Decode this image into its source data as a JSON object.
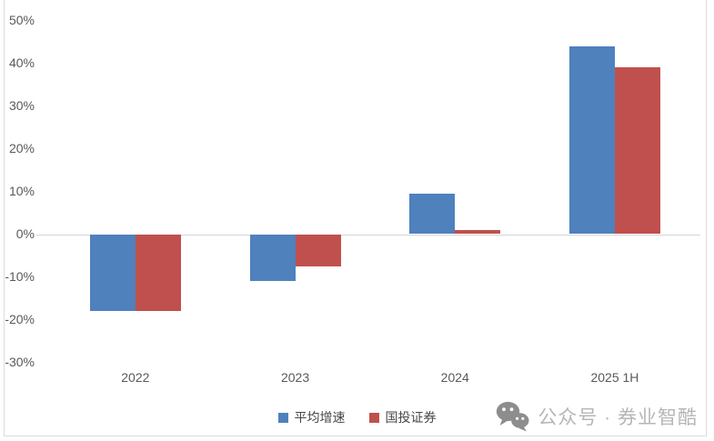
{
  "chart_data": {
    "type": "bar",
    "title": "",
    "categories": [
      "2022",
      "2023",
      "2024",
      "2025 1H"
    ],
    "series": [
      {
        "name": "平均增速",
        "color": "#4F81BD",
        "values": [
          -18,
          -11,
          9.5,
          44
        ]
      },
      {
        "name": "国投证券",
        "color": "#C0504D",
        "values": [
          -18,
          -7.5,
          1,
          39
        ]
      }
    ],
    "ylim": [
      -30,
      50
    ],
    "ytick_labels": [
      "50%",
      "40%",
      "30%",
      "20%",
      "10%",
      "0%",
      "-10%",
      "-20%",
      "-30%"
    ],
    "grid": false,
    "legend_position": "bottom-center"
  },
  "watermark": {
    "icon": "wechat-icon",
    "text": "公众号 · 券业智酷"
  },
  "colors": {
    "axis_line": "#D4D4D4",
    "tick_label": "#595959",
    "legend_text": "#474747",
    "watermark_icon": "#8D8D8D",
    "watermark_text": "#B6B6B6",
    "frame_border": "#DCDCDC"
  }
}
